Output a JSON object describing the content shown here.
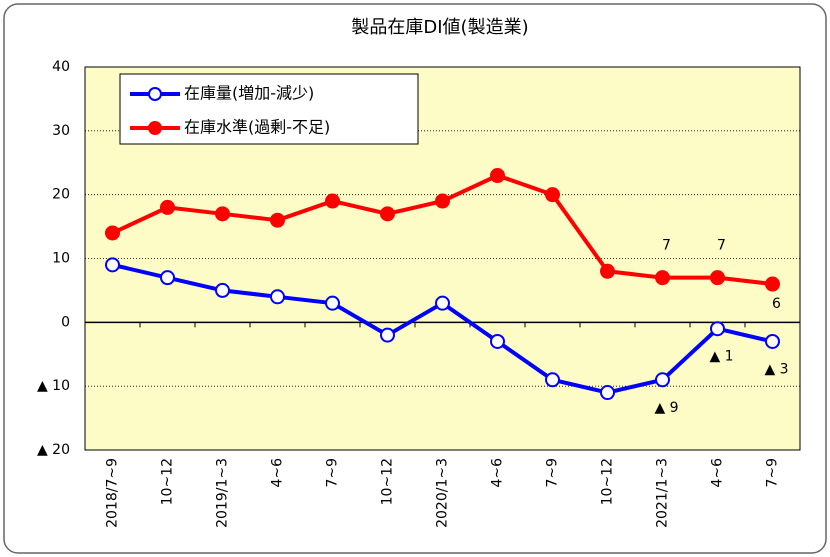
{
  "chart_data": {
    "type": "line",
    "title": "製品在庫DI値(製造業)",
    "categories": [
      "2018/7~9",
      "10~12",
      "2019/1~3",
      "4~6",
      "7~9",
      "10~12",
      "2020/1~3",
      "4~6",
      "7~9",
      "10~12",
      "2021/1~3",
      "4~6",
      "7~9"
    ],
    "series": [
      {
        "name": "在庫量(増加-減少)",
        "color": "#0000ff",
        "marker": "open",
        "values": [
          9,
          7,
          5,
          4,
          3,
          -2,
          3,
          -3,
          -9,
          -11,
          -9,
          -1,
          -3
        ],
        "value_labels": [
          null,
          null,
          null,
          null,
          null,
          null,
          null,
          null,
          null,
          null,
          "▲ 9",
          "▲ 1",
          "▲ 3"
        ]
      },
      {
        "name": "在庫水準(過剰-不足)",
        "color": "#ff0000",
        "marker": "filled",
        "values": [
          14,
          18,
          17,
          16,
          19,
          17,
          19,
          23,
          20,
          8,
          7,
          7,
          6
        ],
        "value_labels": [
          null,
          null,
          null,
          null,
          null,
          null,
          null,
          null,
          null,
          null,
          "7",
          "7",
          "6"
        ]
      }
    ],
    "ylim": [
      -20,
      40
    ],
    "yticks": [
      {
        "value": -20,
        "label": "▲ 20"
      },
      {
        "value": -10,
        "label": "▲ 10"
      },
      0,
      10,
      20,
      30,
      40
    ],
    "grid": true
  }
}
